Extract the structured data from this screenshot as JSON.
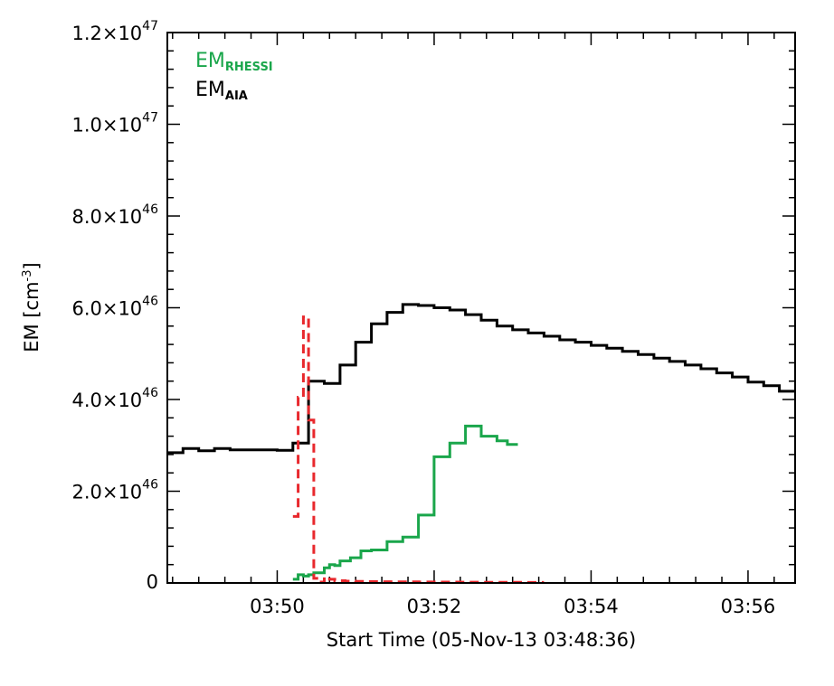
{
  "chart_data": {
    "type": "line",
    "xlabel": "Start Time (05-Nov-13 03:48:36)",
    "ylabel": "EM [cm",
    "ylabel_exp": "-3",
    "ylabel_close": "]",
    "xlim": [
      "03:48:36",
      "03:56:36"
    ],
    "ylim": [
      0,
      1.2e+47
    ],
    "x_ticks": [
      {
        "t": "03:50:00",
        "label": "03:50"
      },
      {
        "t": "03:52:00",
        "label": "03:52"
      },
      {
        "t": "03:54:00",
        "label": "03:54"
      },
      {
        "t": "03:56:00",
        "label": "03:56"
      }
    ],
    "y_ticks": [
      {
        "value": 0,
        "mant": "0",
        "exp": ""
      },
      {
        "value": 2e+46,
        "mant": "2.0×10",
        "exp": "46"
      },
      {
        "value": 4e+46,
        "mant": "4.0×10",
        "exp": "46"
      },
      {
        "value": 6e+46,
        "mant": "6.0×10",
        "exp": "46"
      },
      {
        "value": 8e+46,
        "mant": "8.0×10",
        "exp": "46"
      },
      {
        "value": 1e+47,
        "mant": "1.0×10",
        "exp": "47"
      },
      {
        "value": 1.2e+47,
        "mant": "1.2×10",
        "exp": "47"
      }
    ],
    "legend_position": "top-left",
    "series": [
      {
        "name": "EM",
        "subscript": "AIA",
        "color": "#000000",
        "style": "step-solid",
        "x": [
          "03:48:36",
          "03:48:48",
          "03:49:00",
          "03:49:12",
          "03:49:24",
          "03:49:36",
          "03:49:48",
          "03:50:00",
          "03:50:12",
          "03:50:24",
          "03:50:36",
          "03:50:48",
          "03:51:00",
          "03:51:12",
          "03:51:24",
          "03:51:36",
          "03:51:48",
          "03:52:00",
          "03:52:12",
          "03:52:24",
          "03:52:36",
          "03:52:48",
          "03:53:00",
          "03:53:12",
          "03:53:24",
          "03:53:36",
          "03:53:48",
          "03:54:00",
          "03:54:12",
          "03:54:24",
          "03:54:36",
          "03:54:48",
          "03:55:00",
          "03:55:12",
          "03:55:24",
          "03:55:36",
          "03:55:48",
          "03:56:00",
          "03:56:12",
          "03:56:24"
        ],
        "y": [
          2.84e+46,
          2.93e+46,
          2.88e+46,
          2.93e+46,
          2.9e+46,
          2.9e+46,
          2.9e+46,
          2.89e+46,
          3.05e+46,
          4.4e+46,
          4.35e+46,
          4.75e+46,
          5.25e+46,
          5.65e+46,
          5.9e+46,
          6.07e+46,
          6.05e+46,
          6e+46,
          5.95e+46,
          5.85e+46,
          5.73e+46,
          5.6e+46,
          5.52e+46,
          5.45e+46,
          5.38e+46,
          5.3e+46,
          5.25e+46,
          5.18e+46,
          5.12e+46,
          5.05e+46,
          4.98e+46,
          4.9e+46,
          4.83e+46,
          4.75e+46,
          4.67e+46,
          4.58e+46,
          4.49e+46,
          4.38e+46,
          4.3e+46,
          4.18e+46
        ]
      },
      {
        "name": "EM",
        "subscript": "RHESSI",
        "color": "#1aa64b",
        "style": "step-solid",
        "x": [
          "03:50:12",
          "03:50:16",
          "03:50:20",
          "03:50:24",
          "03:50:28",
          "03:50:32",
          "03:50:36",
          "03:50:40",
          "03:50:44",
          "03:50:48",
          "03:50:56",
          "03:51:04",
          "03:51:12",
          "03:51:24",
          "03:51:36",
          "03:51:48",
          "03:52:00",
          "03:52:12",
          "03:52:24",
          "03:52:36",
          "03:52:48",
          "03:52:56"
        ],
        "y": [
          8e+44,
          1.8e+45,
          1.5e+45,
          1.8e+45,
          2.2e+45,
          2.2e+45,
          3.3e+45,
          4e+45,
          3.8e+45,
          4.8e+45,
          5.5e+45,
          7e+45,
          7.2e+45,
          9e+45,
          1e+46,
          1.48e+46,
          2.75e+46,
          3.05e+46,
          3.42e+46,
          3.2e+46,
          3.1e+46,
          3.02e+46
        ]
      },
      {
        "name": "",
        "subscript": "",
        "color": "#e8282d",
        "style": "step-dashed",
        "x": [
          "03:50:12",
          "03:50:16",
          "03:50:20",
          "03:50:24",
          "03:50:28",
          "03:50:32",
          "03:50:36",
          "03:50:40",
          "03:50:44",
          "03:50:52",
          "03:51:00",
          "03:51:08",
          "03:51:16",
          "03:51:32",
          "03:51:48",
          "03:52:04",
          "03:52:20",
          "03:52:36",
          "03:52:52",
          "03:53:08",
          "03:53:16"
        ],
        "y": [
          1.45e+46,
          4.05e+46,
          5.8e+46,
          3.55e+46,
          1e+45,
          2e+44,
          1.2e+45,
          8e+44,
          5e+44,
          4e+44,
          3.5e+44,
          3e+44,
          2.8e+44,
          2.5e+44,
          2.2e+44,
          2e+44,
          1.8e+44,
          1.6e+44,
          1.4e+44,
          1.2e+44,
          1.2e+44
        ]
      }
    ]
  }
}
